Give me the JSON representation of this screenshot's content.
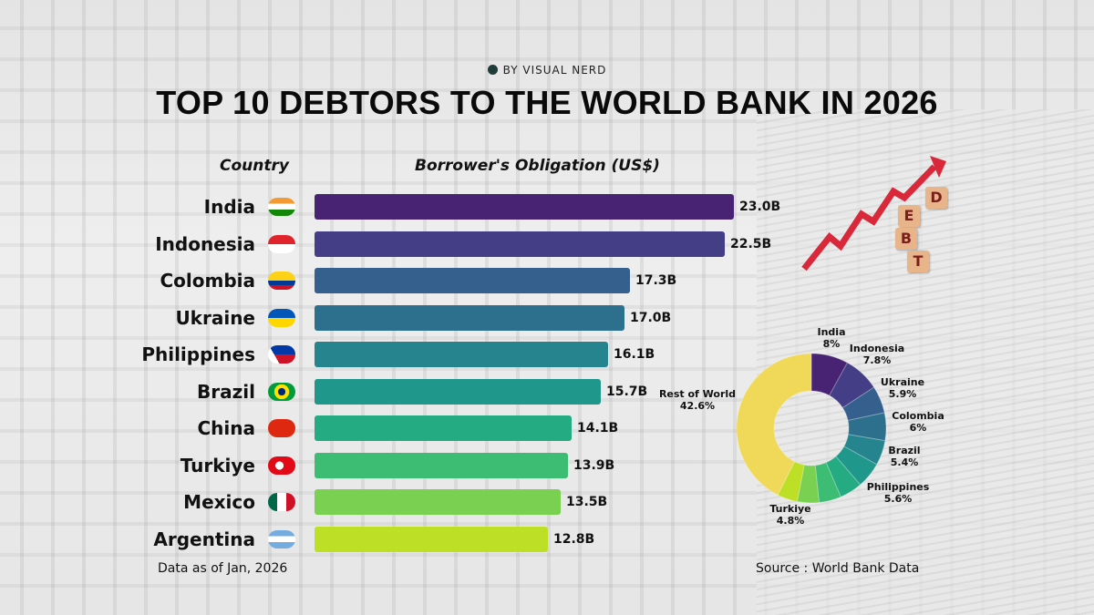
{
  "brand": "BY VISUAL NERD",
  "title": "TOP 10 DEBTORS TO THE WORLD BANK IN 2026",
  "headers": {
    "country": "Country",
    "value": "Borrower's Obligation (US$)"
  },
  "footer": {
    "left": "Data as of Jan, 2026",
    "right": "Source : World Bank Data"
  },
  "decor": {
    "debt_letters": [
      "D",
      "E",
      "B",
      "T"
    ]
  },
  "chart_data": [
    {
      "type": "bar",
      "orientation": "horizontal",
      "categories": [
        "India",
        "Indonesia",
        "Colombia",
        "Ukraine",
        "Philippines",
        "Brazil",
        "China",
        "Turkiye",
        "Mexico",
        "Argentina"
      ],
      "values": [
        23.0,
        22.5,
        17.3,
        17.0,
        16.1,
        15.7,
        14.1,
        13.9,
        13.5,
        12.8
      ],
      "labels": [
        "23.0B",
        "22.5B",
        "17.3B",
        "17.0B",
        "16.1B",
        "15.7B",
        "14.1B",
        "13.9B",
        "13.5B",
        "12.8B"
      ],
      "colors": [
        "#482273",
        "#433e85",
        "#355f8d",
        "#2d708e",
        "#25848e",
        "#1f988b",
        "#25ab82",
        "#3dbc74",
        "#7ad151",
        "#bddf26"
      ],
      "unit": "US$ billions"
    },
    {
      "type": "pie",
      "hole": true,
      "slices": [
        {
          "label": "India",
          "value": 8,
          "text": "8%",
          "color": "#482273"
        },
        {
          "label": "Indonesia",
          "value": 7.8,
          "text": "7.8%",
          "color": "#433e85"
        },
        {
          "label": "Ukraine",
          "value": 5.9,
          "text": "5.9%",
          "color": "#355f8d"
        },
        {
          "label": "Colombia",
          "value": 6,
          "text": "6%",
          "color": "#2d708e"
        },
        {
          "label": "Brazil",
          "value": 5.4,
          "text": "5.4%",
          "color": "#25848e"
        },
        {
          "label": "Philippines",
          "value": 5.6,
          "text": "5.6%",
          "color": "#1f988b"
        },
        {
          "label": "",
          "value": 4.9,
          "text": "",
          "color": "#25ab82"
        },
        {
          "label": "Turkiye",
          "value": 4.8,
          "text": "4.8%",
          "color": "#3dbc74"
        },
        {
          "label": "",
          "value": 4.7,
          "text": "",
          "color": "#7ad151"
        },
        {
          "label": "",
          "value": 4.4,
          "text": "",
          "color": "#bddf26"
        },
        {
          "label": "Rest of World",
          "value": 42.6,
          "text": "42.6%",
          "color": "#f0d858"
        }
      ]
    }
  ]
}
